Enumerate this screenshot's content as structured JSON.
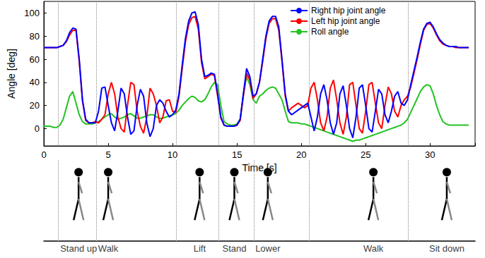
{
  "chart_data": {
    "type": "line",
    "x_label": "Time [s]",
    "y_label": "Angle [deg]",
    "xlim": [
      0,
      33.5
    ],
    "xticks": [
      0,
      5,
      10,
      15,
      20,
      25,
      30
    ],
    "ylim": [
      -15,
      110
    ],
    "yticks": [
      0,
      20,
      40,
      60,
      80,
      100
    ],
    "grid": false,
    "legend": "top",
    "x": [
      0,
      0.25,
      0.5,
      0.75,
      1,
      1.25,
      1.5,
      1.75,
      2,
      2.25,
      2.5,
      2.75,
      3,
      3.25,
      3.5,
      3.75,
      4,
      4.25,
      4.5,
      4.75,
      5,
      5.25,
      5.5,
      5.75,
      6,
      6.25,
      6.5,
      6.75,
      7,
      7.25,
      7.5,
      7.75,
      8,
      8.25,
      8.5,
      8.75,
      9,
      9.25,
      9.5,
      9.75,
      10,
      10.25,
      10.5,
      10.75,
      11,
      11.25,
      11.5,
      11.75,
      12,
      12.25,
      12.5,
      12.75,
      13,
      13.25,
      13.5,
      13.75,
      14,
      14.25,
      14.5,
      14.75,
      15,
      15.25,
      15.5,
      15.75,
      16,
      16.25,
      16.5,
      16.75,
      17,
      17.25,
      17.5,
      17.75,
      18,
      18.25,
      18.5,
      18.75,
      19,
      19.25,
      19.5,
      19.75,
      20,
      20.25,
      20.5,
      20.75,
      21,
      21.25,
      21.5,
      21.75,
      22,
      22.25,
      22.5,
      22.75,
      23,
      23.25,
      23.5,
      23.75,
      24,
      24.25,
      24.5,
      24.75,
      25,
      25.25,
      25.5,
      25.75,
      26,
      26.25,
      26.5,
      26.75,
      27,
      27.25,
      27.5,
      27.75,
      28,
      28.25,
      28.5,
      28.75,
      29,
      29.25,
      29.5,
      29.75,
      30,
      30.25,
      30.5,
      30.75,
      31,
      31.25,
      31.5,
      31.75,
      32,
      32.25,
      32.5,
      32.75,
      33
    ],
    "series": [
      {
        "name": "Right hip joint angle",
        "color": "#0000ff",
        "values": [
          70,
          70,
          70,
          70,
          70,
          71,
          72,
          76,
          83,
          87,
          86,
          60,
          25,
          8,
          5,
          5,
          5,
          15,
          35,
          36,
          20,
          5,
          -2,
          15,
          35,
          30,
          10,
          -5,
          -2,
          20,
          34,
          28,
          5,
          -7,
          0,
          20,
          25,
          22,
          15,
          10,
          12,
          16,
          30,
          55,
          78,
          93,
          100,
          101,
          90,
          60,
          45,
          46,
          48,
          47,
          30,
          10,
          3,
          2,
          2,
          2,
          3,
          8,
          30,
          52,
          45,
          28,
          30,
          40,
          60,
          80,
          93,
          97,
          97,
          88,
          60,
          30,
          15,
          12,
          14,
          16,
          18,
          20,
          22,
          10,
          -2,
          10,
          30,
          38,
          25,
          5,
          -5,
          5,
          30,
          37,
          20,
          0,
          -8,
          10,
          35,
          38,
          20,
          0,
          -3,
          15,
          34,
          30,
          12,
          5,
          15,
          28,
          32,
          22,
          20,
          25,
          38,
          50,
          62,
          75,
          86,
          91,
          92,
          88,
          82,
          77,
          74,
          72,
          71,
          71,
          71,
          70,
          70,
          70,
          70
        ]
      },
      {
        "name": "Left hip joint angle",
        "color": "#ff0000",
        "values": [
          70,
          70,
          70,
          70,
          70,
          71,
          72,
          75,
          81,
          85,
          85,
          58,
          24,
          7,
          5,
          5,
          6,
          5,
          8,
          12,
          30,
          40,
          30,
          10,
          0,
          -3,
          20,
          40,
          38,
          15,
          2,
          -4,
          10,
          35,
          30,
          20,
          5,
          10,
          24,
          25,
          15,
          14,
          28,
          52,
          75,
          90,
          96,
          97,
          86,
          57,
          43,
          45,
          47,
          46,
          28,
          9,
          3,
          2,
          2,
          2,
          3,
          7,
          28,
          48,
          42,
          26,
          30,
          40,
          58,
          78,
          91,
          95,
          95,
          85,
          58,
          28,
          15,
          18,
          20,
          22,
          20,
          18,
          20,
          35,
          40,
          25,
          5,
          -2,
          10,
          35,
          42,
          25,
          5,
          -5,
          10,
          38,
          40,
          20,
          0,
          -4,
          15,
          38,
          40,
          22,
          5,
          0,
          20,
          36,
          30,
          15,
          10,
          20,
          25,
          28,
          36,
          48,
          60,
          73,
          85,
          90,
          91,
          87,
          81,
          76,
          73,
          72,
          71,
          71,
          70,
          70,
          70,
          70,
          70
        ]
      },
      {
        "name": "Roll angle",
        "color": "#22c322",
        "values": [
          2,
          2,
          2,
          1,
          1,
          3,
          8,
          18,
          28,
          32,
          22,
          12,
          6,
          4,
          4,
          4,
          5,
          6,
          8,
          10,
          12,
          13,
          10,
          8,
          9,
          10,
          12,
          13,
          11,
          9,
          9,
          10,
          11,
          12,
          12,
          10,
          9,
          9,
          10,
          11,
          12,
          13,
          16,
          20,
          23,
          26,
          28,
          27,
          24,
          23,
          25,
          30,
          36,
          40,
          38,
          20,
          6,
          4,
          3,
          3,
          4,
          8,
          30,
          45,
          38,
          25,
          22,
          28,
          30,
          33,
          35,
          36,
          35,
          30,
          25,
          15,
          6,
          5,
          5,
          5,
          4,
          4,
          3,
          2,
          1,
          0,
          -1,
          -2,
          -3,
          -4,
          -5,
          -6,
          -7,
          -8,
          -9,
          -10,
          -11,
          -10,
          -10,
          -9,
          -8,
          -7,
          -6,
          -5,
          -4,
          -3,
          -2,
          -1,
          0,
          1,
          2,
          3,
          5,
          8,
          14,
          20,
          26,
          32,
          36,
          38,
          37,
          30,
          20,
          12,
          6,
          4,
          3,
          3,
          3,
          3,
          3,
          3,
          3
        ]
      }
    ],
    "phase_boundaries": [
      1.1,
      4.1,
      10.3,
      13.6,
      16.3,
      20.6,
      28.3
    ],
    "phases": [
      {
        "label": "Stand up",
        "time": 2.7
      },
      {
        "label": "Walk",
        "time": 5.0
      },
      {
        "label": "Lift",
        "time": 12.1
      },
      {
        "label": "Stand",
        "time": 14.8
      },
      {
        "label": "Lower",
        "time": 17.4
      },
      {
        "label": "Walk",
        "time": 25.6
      },
      {
        "label": "Sit down",
        "time": 31.3
      }
    ]
  }
}
